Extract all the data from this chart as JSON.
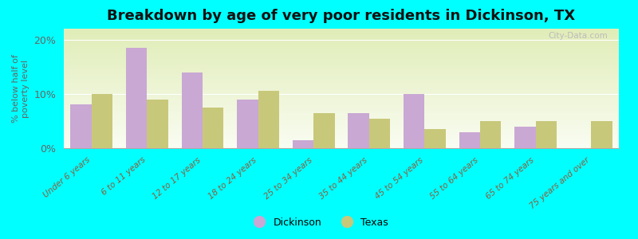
{
  "title": "Breakdown by age of very poor residents in Dickinson, TX",
  "categories": [
    "Under 6 years",
    "6 to 11 years",
    "12 to 17 years",
    "18 to 24 years",
    "25 to 34 years",
    "35 to 44 years",
    "45 to 54 years",
    "55 to 64 years",
    "65 to 74 years",
    "75 years and over"
  ],
  "dickinson": [
    8.0,
    18.5,
    14.0,
    9.0,
    1.5,
    6.5,
    10.0,
    3.0,
    4.0,
    0
  ],
  "texas": [
    10.0,
    9.0,
    7.5,
    10.5,
    6.5,
    5.5,
    3.5,
    5.0,
    5.0,
    5.0
  ],
  "dickinson_color": "#c9a8d4",
  "texas_color": "#c8c87a",
  "background_color": "#00ffff",
  "ylabel": "% below half of\npoverty level",
  "ylim": [
    0,
    22
  ],
  "yticks": [
    0,
    10,
    20
  ],
  "ytick_labels": [
    "0%",
    "10%",
    "20%"
  ],
  "title_fontsize": 13,
  "legend_dickinson": "Dickinson",
  "legend_texas": "Texas",
  "bar_width": 0.38
}
